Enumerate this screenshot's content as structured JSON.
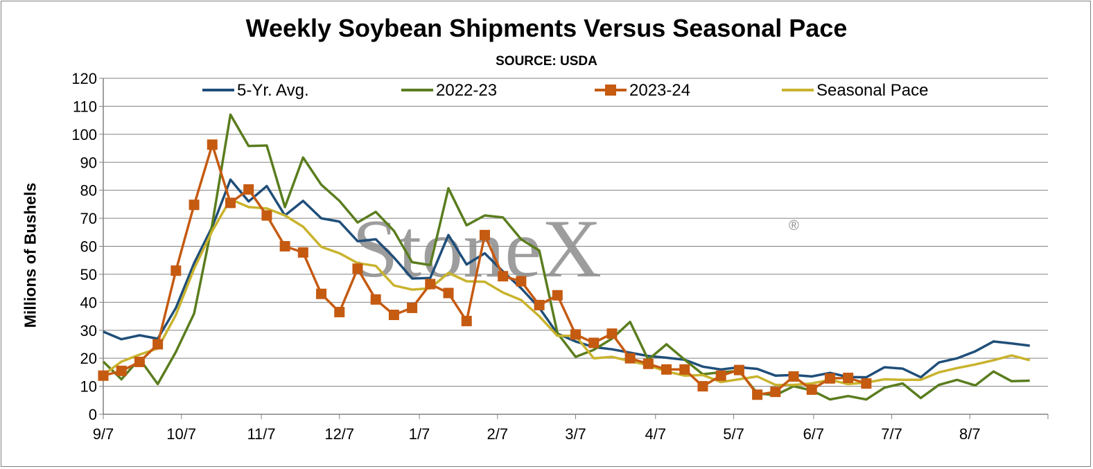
{
  "watermark": "StoneX",
  "watermark_mark": "®",
  "colors": {
    "five_yr": "#1f4e79",
    "y2022": "#5a7d1e",
    "y2023": "#c55a11",
    "seasonal": "#c9b32d",
    "grid": "#808080",
    "watermark": "#8c8c8c"
  },
  "chart_data": {
    "type": "line",
    "title": "Weekly Soybean Shipments Versus Seasonal Pace",
    "subtitle": "SOURCE: USDA",
    "ylabel": "Millions of Bushels",
    "xlabel": "",
    "ylim": [
      0,
      120
    ],
    "yticks": [
      0,
      10,
      20,
      30,
      40,
      50,
      60,
      70,
      80,
      90,
      100,
      110,
      120
    ],
    "grid": true,
    "legend_position": "top",
    "weeks": 52,
    "x_tick_labels": [
      "9/7",
      "10/7",
      "11/7",
      "12/7",
      "1/7",
      "2/7",
      "3/7",
      "4/7",
      "5/7",
      "6/7",
      "7/7",
      "8/7"
    ],
    "x_tick_weeks": [
      0,
      4.3,
      8.7,
      13,
      17.4,
      21.7,
      26,
      30.4,
      34.7,
      39.1,
      43.4,
      47.7
    ],
    "series": [
      {
        "name": "5-Yr. Avg.",
        "color": "#1f4e79",
        "marker": "none",
        "values": [
          29.5,
          26.8,
          28.2,
          27,
          38,
          54,
          67,
          83.8,
          76,
          81.5,
          71,
          76.2,
          70,
          68.8,
          61.8,
          62.5,
          56,
          48.5,
          48.7,
          64,
          53.5,
          57.5,
          51,
          45,
          38,
          28.8,
          26,
          24,
          23.2,
          22,
          20.8,
          20.2,
          19.5,
          17,
          16,
          16.8,
          16.2,
          13.8,
          14,
          13.5,
          14.8,
          13.3,
          13.2,
          16.8,
          16.3,
          13.2,
          18.5,
          20,
          22.5,
          26,
          25.3,
          24.5
        ]
      },
      {
        "name": "2022-23",
        "color": "#5a7d1e",
        "marker": "none",
        "values": [
          18.8,
          12.5,
          19.8,
          10.8,
          22.3,
          36,
          68,
          107,
          95.8,
          96,
          74,
          91.7,
          82,
          76.2,
          68.5,
          72.3,
          65.5,
          54.3,
          53.3,
          80.7,
          67.5,
          71,
          70.3,
          62.5,
          58.5,
          29,
          20.5,
          23,
          27,
          33,
          19.5,
          25,
          19.5,
          14.3,
          15,
          15.5,
          7.5,
          6.8,
          10,
          8.5,
          5.3,
          6.5,
          5.3,
          9.5,
          11,
          5.8,
          10.5,
          12.3,
          10.3,
          15.3,
          11.8,
          12
        ]
      },
      {
        "name": "2023-24",
        "color": "#c55a11",
        "marker": "square",
        "values": [
          13.8,
          15.5,
          18.7,
          25,
          51.3,
          74.8,
          96.3,
          75.5,
          80.3,
          71,
          60,
          57.8,
          43,
          36.5,
          52,
          41,
          35.5,
          38,
          46.5,
          43.3,
          33.3,
          64,
          49.3,
          47.5,
          39,
          42.5,
          28.5,
          25.5,
          28.8,
          20,
          18,
          16,
          16,
          10,
          13.8,
          15.8,
          7,
          8,
          13.5,
          8.8,
          12.8,
          13,
          11
        ]
      },
      {
        "name": "Seasonal Pace",
        "color": "#c9b32d",
        "marker": "none",
        "values": [
          14,
          18.8,
          21.3,
          23.5,
          35.5,
          52,
          65.5,
          76.8,
          74,
          73.5,
          71,
          67,
          59.8,
          57.5,
          54,
          53,
          46,
          44.5,
          45,
          50.5,
          47.5,
          47.3,
          43.5,
          40.8,
          35,
          28,
          28,
          20,
          20.5,
          19,
          17.5,
          15.3,
          13.8,
          14,
          11.5,
          12.5,
          13.5,
          10.5,
          10.5,
          11,
          12.3,
          10.8,
          11.3,
          12.5,
          12.3,
          12.3,
          15,
          16.5,
          17.8,
          19.3,
          21,
          19.3
        ]
      }
    ]
  }
}
